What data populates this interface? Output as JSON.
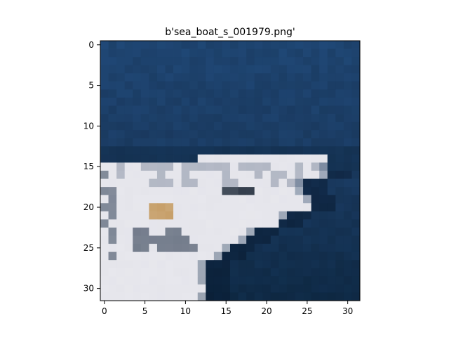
{
  "chart_data": {
    "type": "heatmap",
    "title": "b'sea_boat_s_001979.png'",
    "xlabel": "",
    "ylabel": "",
    "grid": false,
    "image_size": [
      32,
      32
    ],
    "xlim": [
      -0.5,
      31.5
    ],
    "ylim": [
      31.5,
      -0.5
    ],
    "x_ticks": [
      0,
      5,
      10,
      15,
      20,
      25,
      30
    ],
    "y_ticks": [
      0,
      5,
      10,
      15,
      20,
      25,
      30
    ],
    "x_tick_labels": [
      "0",
      "5",
      "10",
      "15",
      "20",
      "25",
      "30"
    ],
    "y_tick_labels": [
      "0",
      "5",
      "10",
      "15",
      "20",
      "25",
      "30"
    ],
    "palette": {
      "sea_top": "#1e4470",
      "sea_mid": "#1a3a60",
      "sea_bottom": "#0f2a46",
      "hull_white": "#e6e6ec",
      "hull_shadow": "#9aa2b2",
      "deck_dark": "#3c4654",
      "accent_tan": "#c8a26e"
    }
  }
}
